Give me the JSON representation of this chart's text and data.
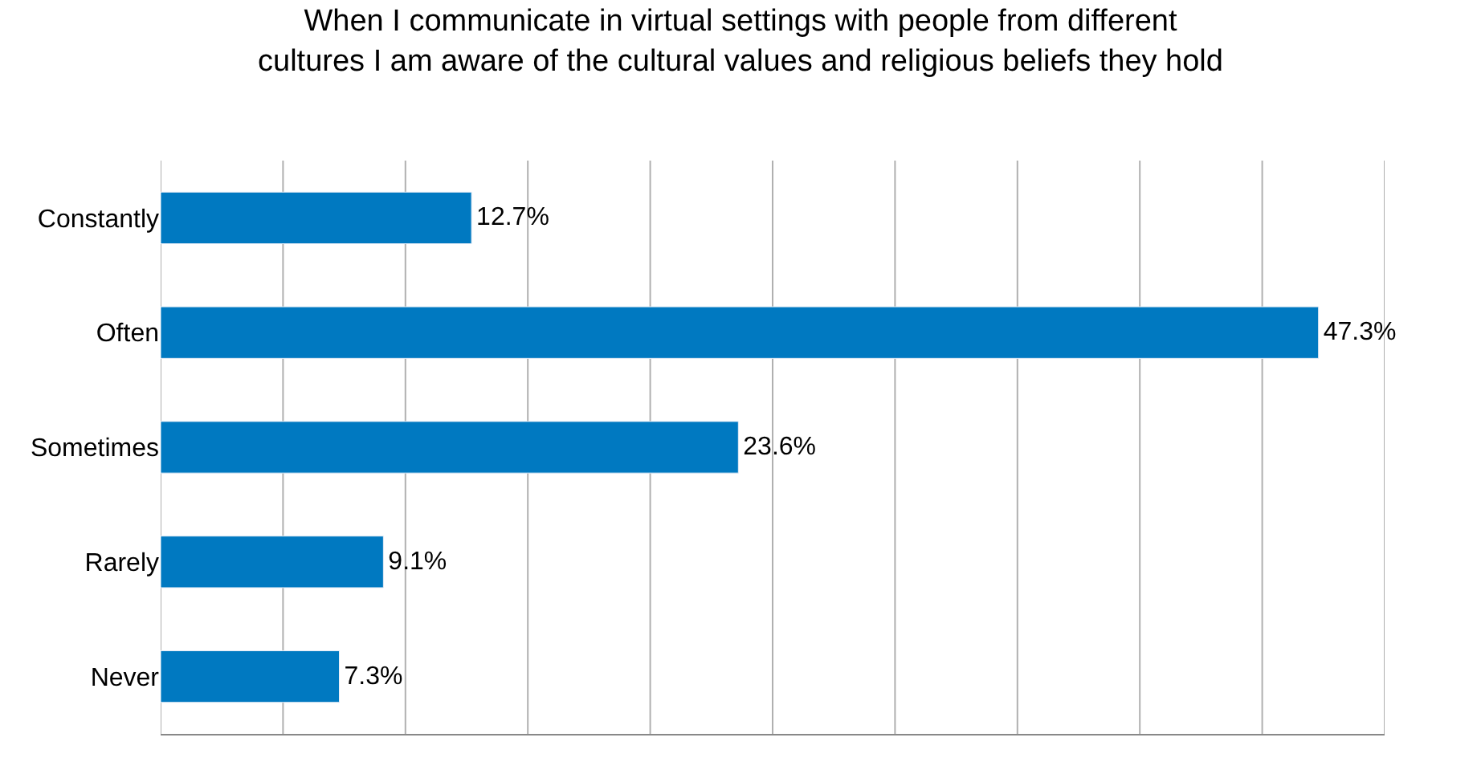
{
  "chart_data": {
    "type": "bar",
    "orientation": "horizontal",
    "title": "When I communicate in virtual settings with people from different\ncultures I am aware of the cultural values and religious beliefs they hold",
    "categories": [
      "Constantly",
      "Often",
      "Sometimes",
      "Rarely",
      "Never"
    ],
    "values": [
      12.7,
      47.3,
      23.6,
      9.1,
      7.3
    ],
    "value_labels": [
      "12.7%",
      "47.3%",
      "23.6%",
      "9.1%",
      "7.3%"
    ],
    "color": "#0079c1",
    "xlim": [
      0,
      50
    ],
    "xticks": [
      {
        "value": 0,
        "label": null
      },
      {
        "value": 5,
        "label": null
      },
      {
        "value": 10,
        "label": null
      },
      {
        "value": 15,
        "label": null
      },
      {
        "value": 20,
        "label": null
      },
      {
        "value": 25,
        "label": null
      },
      {
        "value": 30,
        "label": null
      },
      {
        "value": 35,
        "label": null
      },
      {
        "value": 40,
        "label": null
      },
      {
        "value": 45,
        "label": null
      },
      {
        "value": 50,
        "label": null
      }
    ],
    "grid": "x",
    "tick_labels": "y"
  }
}
